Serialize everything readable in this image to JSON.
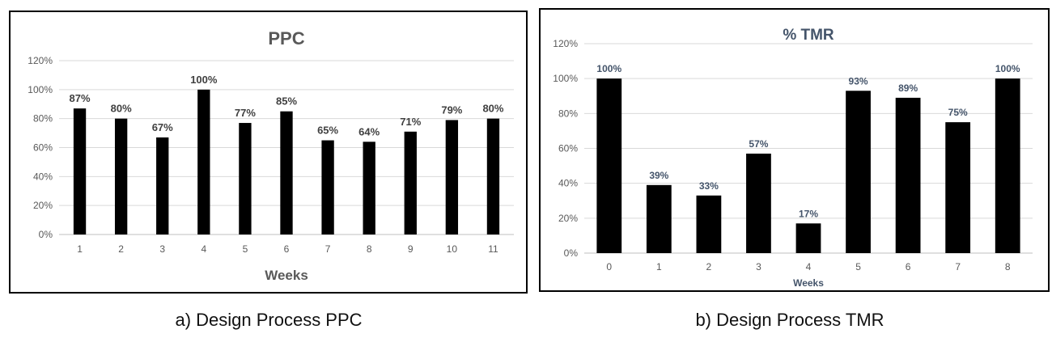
{
  "chart_data": [
    {
      "type": "bar",
      "title": "PPC",
      "xlabel": "Weeks",
      "ylabel": "",
      "categories": [
        "1",
        "2",
        "3",
        "4",
        "5",
        "6",
        "7",
        "8",
        "9",
        "10",
        "11"
      ],
      "values": [
        87,
        80,
        67,
        100,
        77,
        85,
        65,
        64,
        71,
        79,
        80
      ],
      "data_labels": [
        "87%",
        "80%",
        "67%",
        "100%",
        "77%",
        "85%",
        "65%",
        "64%",
        "71%",
        "79%",
        "80%"
      ],
      "ylim": [
        0,
        120
      ],
      "yticks": [
        "0%",
        "20%",
        "40%",
        "60%",
        "80%",
        "100%",
        "120%"
      ],
      "grid": true,
      "bar_color": "#000000",
      "caption": "a) Design Process PPC"
    },
    {
      "type": "bar",
      "title": "% TMR",
      "xlabel": "Weeks",
      "ylabel": "",
      "categories": [
        "0",
        "1",
        "2",
        "3",
        "4",
        "5",
        "6",
        "7",
        "8"
      ],
      "values": [
        100,
        39,
        33,
        57,
        17,
        93,
        89,
        75,
        100
      ],
      "data_labels": [
        "100%",
        "39%",
        "33%",
        "57%",
        "17%",
        "93%",
        "89%",
        "75%",
        "100%"
      ],
      "ylim": [
        0,
        120
      ],
      "yticks": [
        "0%",
        "20%",
        "40%",
        "60%",
        "80%",
        "100%",
        "120%"
      ],
      "grid": true,
      "bar_color": "#000000",
      "caption": "b)  Design Process TMR"
    }
  ]
}
